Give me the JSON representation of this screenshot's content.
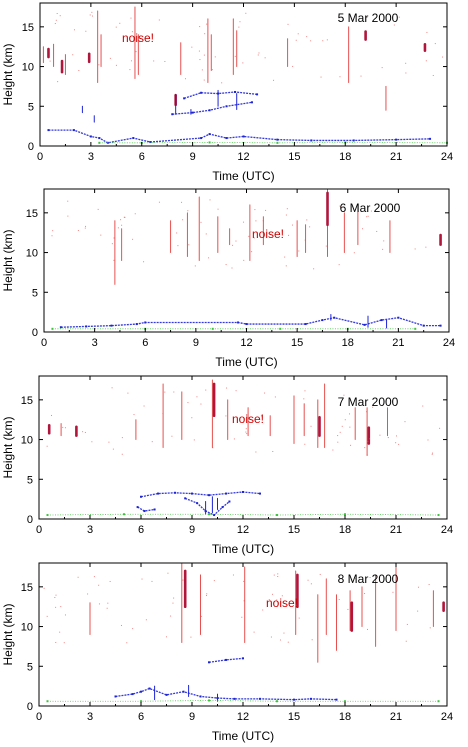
{
  "colors": {
    "cirrus": "#e8504f",
    "cirrus_dense": "#b0153c",
    "cloud_low": "#1d24d6",
    "ground": "#3ec23e",
    "noise_label": "#cc0000",
    "axes": "#000000"
  },
  "chart_data": [
    {
      "type": "scatter",
      "title": "5 Mar 2000",
      "annotation": "noise!",
      "xlabel": "Time (UTC)",
      "ylabel": "Height (km)",
      "xlim": [
        0,
        24
      ],
      "ylim": [
        0,
        18
      ],
      "xticks": [
        "0",
        "3",
        "6",
        "9",
        "12",
        "15",
        "18",
        "21",
        "24"
      ],
      "yticks": [
        "0",
        "5",
        "10",
        "15"
      ],
      "series": [
        {
          "layer": "cirrus",
          "segments": [
            [
              0.2,
              10.5,
              12.5
            ],
            [
              0.8,
              10,
              12.8
            ],
            [
              1.5,
              9,
              11.5
            ],
            [
              3.4,
              8,
              17
            ],
            [
              3.6,
              10,
              14
            ],
            [
              5.6,
              8.5,
              17.5
            ],
            [
              5.8,
              9,
              14
            ],
            [
              8.3,
              9,
              13
            ],
            [
              9.9,
              8,
              16
            ],
            [
              10.1,
              9.5,
              14
            ],
            [
              11.4,
              9,
              16
            ],
            [
              11.6,
              10,
              14.5
            ],
            [
              14.6,
              10,
              13.5
            ],
            [
              18.2,
              8,
              15
            ],
            [
              20.4,
              4.5,
              7.5
            ]
          ]
        },
        {
          "layer": "cirrus_dense",
          "segments": [
            [
              0.5,
              11.2,
              12.2
            ],
            [
              1.3,
              9.3,
              10.7
            ],
            [
              2.9,
              10.6,
              11.6
            ],
            [
              8.0,
              5.2,
              6.4
            ],
            [
              19.2,
              13.4,
              14.4
            ],
            [
              22.7,
              12.0,
              12.8
            ]
          ]
        },
        {
          "layer": "cloud_low",
          "segments": [
            [
              2.5,
              4.2,
              5.0
            ],
            [
              3.2,
              3.0,
              3.8
            ],
            [
              8.0,
              4.0,
              6.5
            ],
            [
              8.9,
              4.0,
              4.6
            ],
            [
              10.5,
              5.0,
              7.0
            ],
            [
              11.6,
              4.6,
              6.6
            ]
          ]
        },
        {
          "layer": "cloud_low_band",
          "points": [
            [
              0.5,
              2.0
            ],
            [
              2.0,
              2.0
            ],
            [
              3.0,
              1.2
            ],
            [
              3.5,
              1.0
            ],
            [
              4.0,
              0.4
            ],
            [
              5.5,
              1.0
            ],
            [
              6.5,
              0.5
            ],
            [
              9.5,
              1.0
            ],
            [
              10.0,
              1.5
            ],
            [
              11.0,
              1.0
            ],
            [
              12.0,
              1.2
            ],
            [
              14.0,
              0.8
            ],
            [
              16.0,
              0.7
            ],
            [
              18.5,
              0.7
            ],
            [
              21.0,
              0.8
            ],
            [
              23.0,
              0.9
            ]
          ]
        },
        {
          "layer": "cloud_low_band",
          "points": [
            [
              7.8,
              4.0
            ],
            [
              9.0,
              4.2
            ],
            [
              10.0,
              4.5
            ],
            [
              11.0,
              5.0
            ],
            [
              12.5,
              5.5
            ]
          ]
        },
        {
          "layer": "cloud_low_band",
          "points": [
            [
              8.5,
              6.0
            ],
            [
              9.5,
              6.7
            ],
            [
              10.5,
              6.6
            ],
            [
              11.5,
              6.8
            ],
            [
              12.8,
              6.5
            ]
          ]
        },
        {
          "layer": "ground",
          "points": [
            [
              3.5,
              0.4
            ],
            [
              6.0,
              0.4
            ],
            [
              10.0,
              0.45
            ],
            [
              14.0,
              0.4
            ],
            [
              18.0,
              0.45
            ],
            [
              24.0,
              0.4
            ]
          ]
        }
      ]
    },
    {
      "type": "scatter",
      "title": "6 Mar 2000",
      "annotation": "noise!",
      "xlabel": "Time (UTC)",
      "ylabel": "Height (km)",
      "xlim": [
        0,
        24
      ],
      "ylim": [
        0,
        18
      ],
      "xticks": [
        "0",
        "3",
        "6",
        "9",
        "12",
        "15",
        "18",
        "21",
        "24"
      ],
      "yticks": [
        "0",
        "5",
        "10",
        "15"
      ],
      "series": [
        {
          "layer": "cirrus",
          "segments": [
            [
              4.2,
              6,
              14
            ],
            [
              4.6,
              9,
              13
            ],
            [
              7.5,
              10,
              14
            ],
            [
              8.5,
              9.5,
              15
            ],
            [
              9.2,
              9,
              17
            ],
            [
              10.3,
              10,
              14.5
            ],
            [
              11.0,
              11,
              13
            ],
            [
              12.2,
              9,
              16
            ],
            [
              13.0,
              11,
              14.5
            ],
            [
              15.0,
              9.5,
              14
            ],
            [
              15.5,
              10,
              13.5
            ],
            [
              16.8,
              9.5,
              18
            ],
            [
              17.8,
              10,
              15
            ],
            [
              18.6,
              11,
              16
            ],
            [
              20.5,
              10,
              14
            ]
          ]
        },
        {
          "layer": "cirrus_dense",
          "segments": [
            [
              16.8,
              13.5,
              17.5
            ],
            [
              23.5,
              11.0,
              12.2
            ]
          ]
        },
        {
          "layer": "cloud_low",
          "segments": [
            [
              17.0,
              1.5,
              2.2
            ],
            [
              19.2,
              0.6,
              2.0
            ],
            [
              20.3,
              0.5,
              1.5
            ]
          ]
        },
        {
          "layer": "cloud_low_band",
          "points": [
            [
              1.0,
              0.6
            ],
            [
              2.5,
              0.7
            ],
            [
              4.0,
              0.8
            ],
            [
              5.5,
              1.0
            ],
            [
              6.0,
              1.2
            ],
            [
              11.5,
              1.2
            ],
            [
              12.0,
              1.0
            ],
            [
              15.5,
              1.0
            ],
            [
              16.5,
              1.5
            ],
            [
              17.2,
              1.8
            ],
            [
              19.0,
              0.9
            ],
            [
              20.0,
              1.5
            ],
            [
              21.0,
              1.8
            ],
            [
              22.5,
              0.8
            ],
            [
              23.5,
              0.8
            ]
          ]
        },
        {
          "layer": "ground",
          "points": [
            [
              0.5,
              0.4
            ],
            [
              6.0,
              0.4
            ],
            [
              10.0,
              0.4
            ],
            [
              14.0,
              0.4
            ],
            [
              18.0,
              0.4
            ],
            [
              22.0,
              0.4
            ]
          ]
        }
      ]
    },
    {
      "type": "scatter",
      "title": "7 Mar 2000",
      "annotation": "noise!",
      "xlabel": "Time (UTC)",
      "ylabel": "Height (km)",
      "xlim": [
        0,
        24
      ],
      "ylim": [
        0,
        18
      ],
      "xticks": [
        "0",
        "3",
        "6",
        "9",
        "12",
        "15",
        "18",
        "21",
        "24"
      ],
      "yticks": [
        "0",
        "5",
        "10",
        "15"
      ],
      "series": [
        {
          "layer": "cirrus",
          "segments": [
            [
              1.3,
              10.5,
              12
            ],
            [
              5.7,
              10,
              12.5
            ],
            [
              7.3,
              9,
              17
            ],
            [
              8.4,
              10,
              16
            ],
            [
              10.2,
              9,
              17.5
            ],
            [
              11.1,
              10,
              15
            ],
            [
              12.3,
              10.5,
              14
            ],
            [
              13.6,
              10.5,
              13
            ],
            [
              15.0,
              9.5,
              15.5
            ],
            [
              15.6,
              10.5,
              14.5
            ],
            [
              16.4,
              9,
              15
            ],
            [
              16.8,
              9,
              17
            ],
            [
              18.6,
              10,
              14
            ],
            [
              19.3,
              8,
              14
            ],
            [
              20.5,
              10.5,
              14
            ]
          ]
        },
        {
          "layer": "cirrus_dense",
          "segments": [
            [
              0.6,
              10.8,
              11.8
            ],
            [
              2.2,
              10.5,
              11.6
            ],
            [
              10.3,
              13.0,
              17.0
            ],
            [
              16.5,
              10.5,
              12.8
            ],
            [
              19.4,
              9.5,
              11.5
            ]
          ]
        },
        {
          "layer": "cloud_low",
          "segments": [
            [
              9.8,
              0.6,
              2.2
            ],
            [
              10.2,
              0.8,
              2.8
            ],
            [
              10.5,
              1.2,
              2.6
            ]
          ]
        },
        {
          "layer": "cloud_low_band",
          "points": [
            [
              6.0,
              2.8
            ],
            [
              7.0,
              3.2
            ],
            [
              8.0,
              3.3
            ],
            [
              9.0,
              3.2
            ],
            [
              10.0,
              3.0
            ],
            [
              11.0,
              3.2
            ],
            [
              12.0,
              3.4
            ],
            [
              13.0,
              3.2
            ]
          ]
        },
        {
          "layer": "cloud_low_band",
          "points": [
            [
              8.6,
              2.6
            ],
            [
              9.3,
              2.0
            ],
            [
              9.8,
              1.0
            ],
            [
              10.3,
              0.5
            ],
            [
              10.8,
              1.5
            ],
            [
              11.2,
              2.2
            ]
          ]
        },
        {
          "layer": "cloud_low_band",
          "points": [
            [
              5.8,
              1.5
            ],
            [
              6.2,
              1.0
            ],
            [
              6.8,
              1.2
            ]
          ]
        },
        {
          "layer": "ground",
          "points": [
            [
              0.5,
              0.5
            ],
            [
              5.0,
              0.6
            ],
            [
              10.0,
              0.6
            ],
            [
              14.0,
              0.5
            ],
            [
              18.0,
              0.6
            ],
            [
              23.5,
              0.5
            ]
          ]
        }
      ]
    },
    {
      "type": "scatter",
      "title": "8 Mar 2000",
      "annotation": "noise!",
      "xlabel": "Time (UTC)",
      "ylabel": "Height (km)",
      "xlim": [
        0,
        24
      ],
      "ylim": [
        0,
        18
      ],
      "xticks": [
        "0",
        "3",
        "6",
        "9",
        "12",
        "15",
        "18",
        "21",
        "24"
      ],
      "yticks": [
        "0",
        "5",
        "10",
        "15"
      ],
      "series": [
        {
          "layer": "cirrus",
          "segments": [
            [
              3.0,
              9,
              13
            ],
            [
              8.4,
              8,
              18
            ],
            [
              9.5,
              9,
              16.5
            ],
            [
              12.1,
              8,
              17.5
            ],
            [
              15.1,
              9,
              17
            ],
            [
              16.4,
              5.5,
              14
            ],
            [
              16.9,
              9,
              16
            ],
            [
              17.5,
              7,
              14
            ],
            [
              18.3,
              9.5,
              14.5
            ],
            [
              19.0,
              10,
              15
            ],
            [
              19.8,
              7.5,
              16.5
            ],
            [
              21.0,
              9.5,
              17.5
            ],
            [
              23.2,
              10,
              14.5
            ]
          ]
        },
        {
          "layer": "cirrus_dense",
          "segments": [
            [
              8.6,
              12.5,
              17.0
            ],
            [
              15.2,
              12.5,
              16.5
            ],
            [
              18.4,
              9.5,
              13.0
            ],
            [
              23.8,
              12.0,
              13.0
            ]
          ]
        },
        {
          "layer": "cloud_low",
          "segments": [
            [
              6.8,
              0.8,
              2.5
            ],
            [
              8.8,
              1.2,
              2.6
            ],
            [
              10.5,
              0.6,
              1.5
            ]
          ]
        },
        {
          "layer": "cloud_low_band",
          "points": [
            [
              10.0,
              5.5
            ],
            [
              11.0,
              5.8
            ],
            [
              12.0,
              6.0
            ]
          ]
        },
        {
          "layer": "cloud_low_band",
          "points": [
            [
              4.5,
              1.2
            ],
            [
              5.5,
              1.5
            ],
            [
              6.0,
              1.8
            ],
            [
              6.5,
              2.2
            ],
            [
              7.5,
              1.4
            ],
            [
              8.5,
              1.8
            ],
            [
              9.5,
              1.2
            ],
            [
              10.5,
              1.0
            ],
            [
              11.5,
              0.9
            ],
            [
              13.0,
              0.9
            ],
            [
              15.0,
              0.8
            ],
            [
              16.0,
              0.9
            ],
            [
              17.5,
              0.8
            ]
          ]
        },
        {
          "layer": "ground",
          "points": [
            [
              0.5,
              0.6
            ],
            [
              6.0,
              0.6
            ],
            [
              10.0,
              0.7
            ],
            [
              14.0,
              0.6
            ],
            [
              18.0,
              0.6
            ],
            [
              23.5,
              0.6
            ]
          ]
        }
      ]
    }
  ]
}
